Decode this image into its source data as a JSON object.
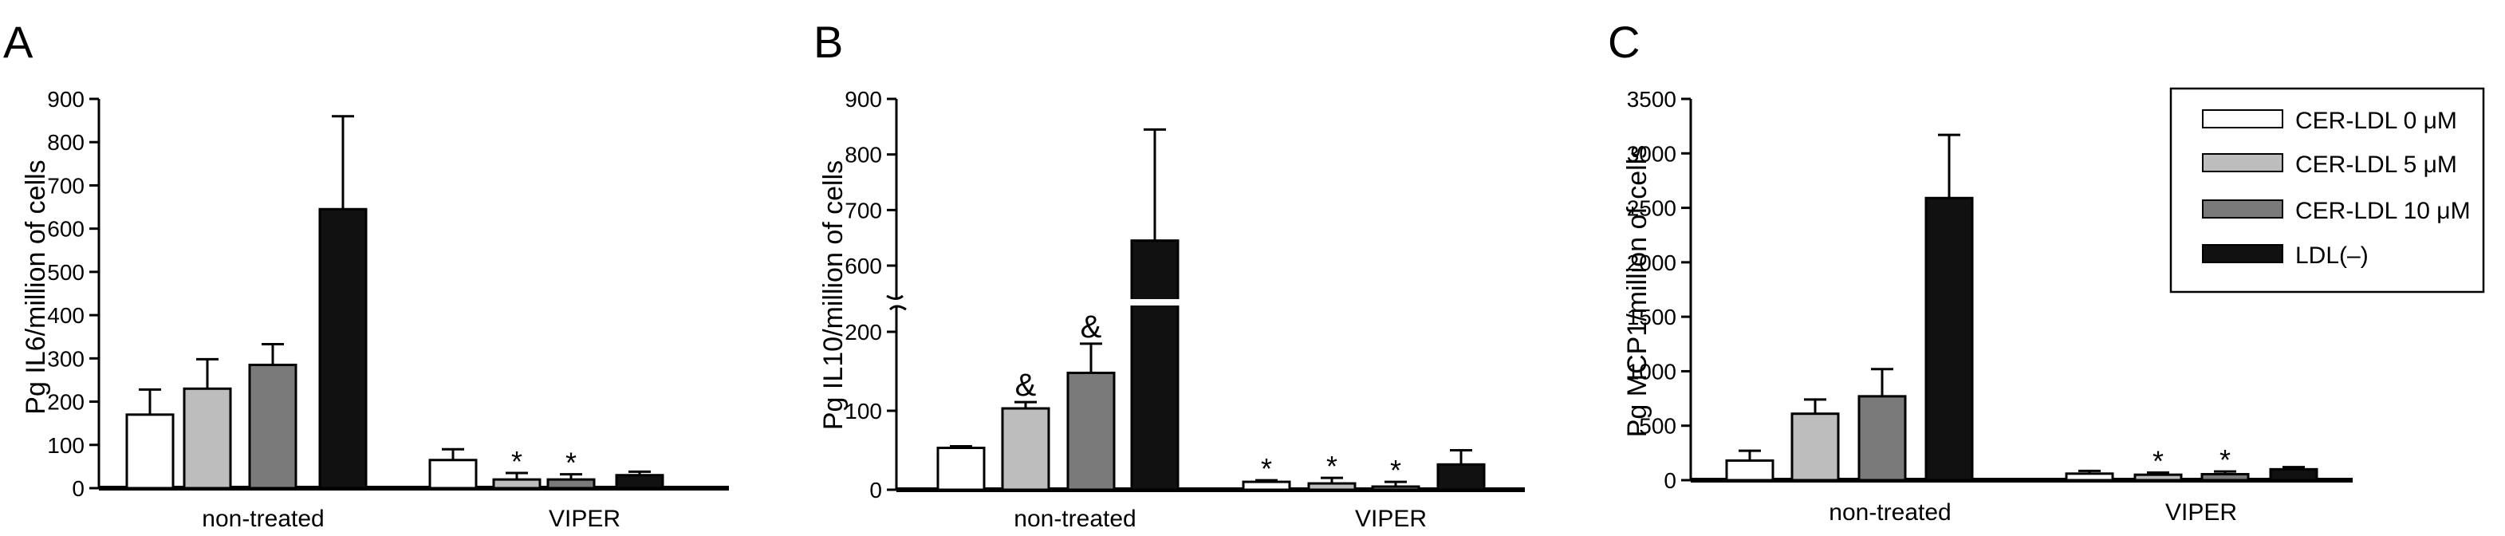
{
  "legend": [
    {
      "label": "CER-LDL 0 μM",
      "color": "#ffffff"
    },
    {
      "label": "CER-LDL 5 μM",
      "color": "#bdbdbd"
    },
    {
      "label": "CER-LDL 10 μM",
      "color": "#7a7a7a"
    },
    {
      "label": "LDL(–)",
      "color": "#111111"
    }
  ],
  "chart_data": [
    {
      "type": "bar",
      "panel": "A",
      "ylabel": "Pg IL6/million of cells",
      "ylim": [
        0,
        900
      ],
      "yticks": [
        0,
        100,
        200,
        300,
        400,
        500,
        600,
        700,
        800,
        900
      ],
      "categories": [
        "non-treated",
        "VIPER"
      ],
      "series": [
        {
          "name": "CER-LDL 0 μM",
          "values": [
            170,
            65
          ],
          "errors": [
            58,
            25
          ],
          "marks": [
            "",
            ""
          ]
        },
        {
          "name": "CER-LDL 5 μM",
          "values": [
            230,
            20
          ],
          "errors": [
            68,
            15
          ],
          "marks": [
            "",
            "*"
          ]
        },
        {
          "name": "CER-LDL 10 μM",
          "values": [
            285,
            20
          ],
          "errors": [
            48,
            12
          ],
          "marks": [
            "",
            "*"
          ]
        },
        {
          "name": "LDL(–)",
          "values": [
            645,
            30
          ],
          "errors": [
            215,
            8
          ],
          "marks": [
            "",
            ""
          ]
        }
      ]
    },
    {
      "type": "bar",
      "panel": "B",
      "ylabel": "Pg IL10/million of cells",
      "axis_break": [
        200,
        600
      ],
      "ylim": [
        0,
        900
      ],
      "yticks": [
        0,
        100,
        200,
        600,
        700,
        800,
        900
      ],
      "categories": [
        "non-treated",
        "VIPER"
      ],
      "series": [
        {
          "name": "CER-LDL 0 μM",
          "values": [
            53,
            10
          ],
          "errors": [
            2,
            2
          ],
          "marks": [
            "",
            "*"
          ]
        },
        {
          "name": "CER-LDL 5 μM",
          "values": [
            103,
            8
          ],
          "errors": [
            8,
            7
          ],
          "marks": [
            "&",
            "*"
          ]
        },
        {
          "name": "CER-LDL 10 μM",
          "values": [
            148,
            4
          ],
          "errors": [
            37,
            6
          ],
          "marks": [
            "&",
            "*"
          ]
        },
        {
          "name": "LDL(–)",
          "values": [
            645,
            32
          ],
          "errors": [
            200,
            18
          ],
          "marks": [
            "",
            ""
          ]
        }
      ]
    },
    {
      "type": "bar",
      "panel": "C",
      "ylabel": "Pg MCP1/million of cells",
      "ylim": [
        0,
        3500
      ],
      "yticks": [
        0,
        500,
        1000,
        1500,
        2000,
        2500,
        3000,
        3500
      ],
      "categories": [
        "non-treated",
        "VIPER"
      ],
      "series": [
        {
          "name": "CER-LDL 0 μM",
          "values": [
            180,
            60
          ],
          "errors": [
            90,
            25
          ],
          "marks": [
            "",
            ""
          ]
        },
        {
          "name": "CER-LDL 5 μM",
          "values": [
            610,
            50
          ],
          "errors": [
            130,
            20
          ],
          "marks": [
            "",
            "*"
          ]
        },
        {
          "name": "CER-LDL 10 μM",
          "values": [
            770,
            55
          ],
          "errors": [
            250,
            25
          ],
          "marks": [
            "",
            "*"
          ]
        },
        {
          "name": "LDL(–)",
          "values": [
            2590,
            100
          ],
          "errors": [
            580,
            20
          ],
          "marks": [
            "",
            ""
          ]
        }
      ]
    }
  ]
}
